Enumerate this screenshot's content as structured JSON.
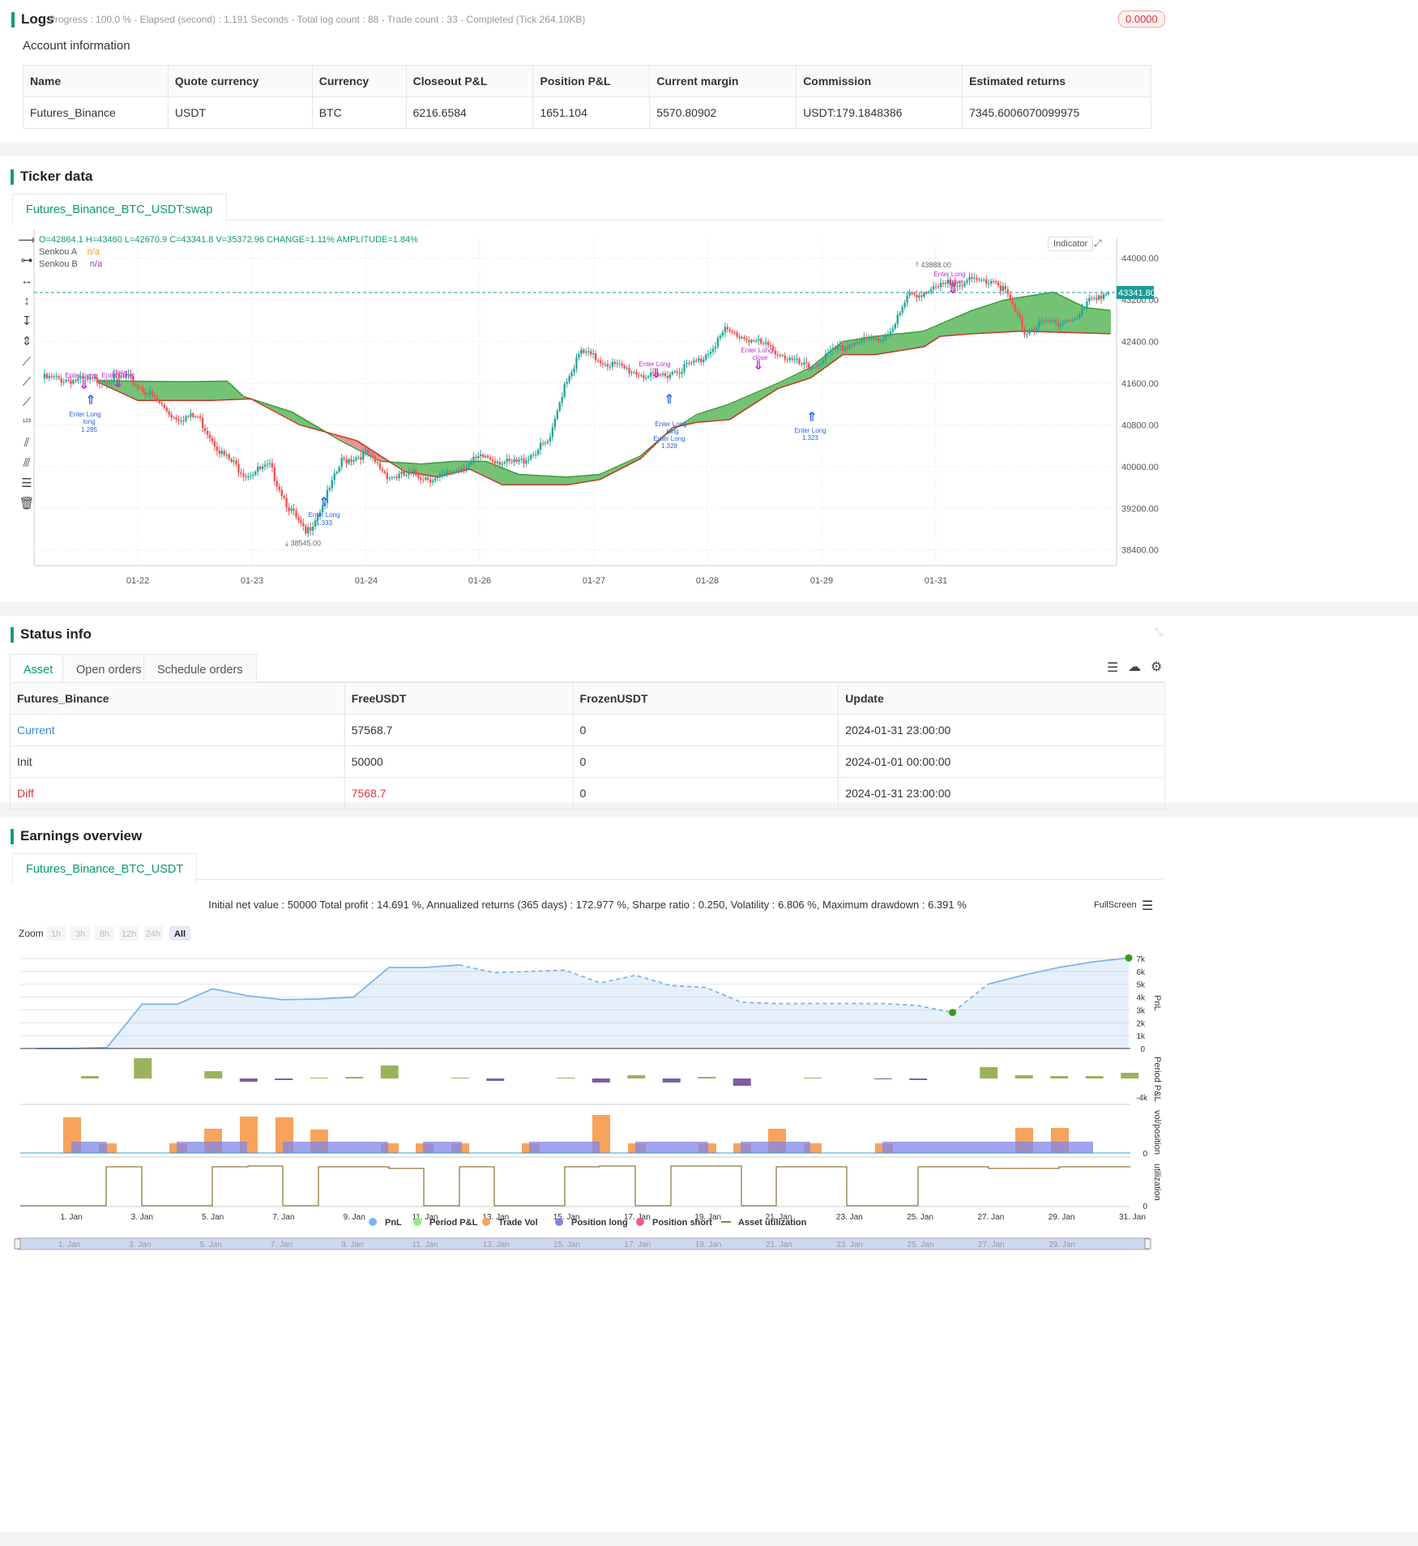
{
  "logs": {
    "title": "Logs",
    "summary": "Progress : 100.0 % - Elapsed (second) : 1.191 Seconds - Total log count : 88 - Trade count : 33 - Completed (Tick 264.10KB)",
    "badge": "0.0000"
  },
  "account": {
    "title": "Account information",
    "headers": [
      "Name",
      "Quote currency",
      "Currency",
      "Closeout P&L",
      "Position P&L",
      "Current margin",
      "Commission",
      "Estimated returns"
    ],
    "row": [
      "Futures_Binance",
      "USDT",
      "BTC",
      "6216.6584",
      "1651.104",
      "5570.80902",
      "USDT:179.1848386",
      "7345.6006070099975"
    ]
  },
  "ticker": {
    "title": "Ticker data",
    "tab": "Futures_Binance_BTC_USDT:swap",
    "ohlc": "O=42864.1 H=43460 L=42670.9 C=43341.8 V=35372.96 CHANGE=1.11% AMPLITUDE=1.84%",
    "legend": [
      {
        "name": "Senkou A",
        "value": "n/a",
        "color": "#f39c12"
      },
      {
        "name": "Senkou B",
        "value": "n/a",
        "color": "#8e44ad"
      }
    ],
    "indicator_btn": "Indicator",
    "price_label": "43341.80",
    "high_label": "43888.00",
    "low_label": "38545.00",
    "y_ticks": [
      "44000.00",
      "43200.00",
      "42400.00",
      "41600.00",
      "40800.00",
      "40000.00",
      "39200.00",
      "38400.00"
    ],
    "x_ticks": [
      "01-22",
      "01-23",
      "01-24",
      "01-26",
      "01-27",
      "01-28",
      "01-29",
      "01-31"
    ],
    "annotations": [
      "Enter Long",
      "Enter Long",
      "close",
      "Enter Long",
      "long",
      "1.285",
      "Enter Long",
      "1.333",
      "Enter Long",
      "Enter Long",
      "long",
      "Enter Long",
      "1.328",
      "Enter Long",
      "close",
      "Enter Long",
      "1.323",
      "Enter Long",
      "close"
    ]
  },
  "status": {
    "title": "Status info",
    "tabs": [
      "Asset",
      "Open orders",
      "Schedule orders"
    ],
    "headers": [
      "Futures_Binance",
      "FreeUSDT",
      "FrozenUSDT",
      "Update"
    ],
    "rows": [
      [
        "Current",
        "57568.7",
        "0",
        "2024-01-31 23:00:00"
      ],
      [
        "Init",
        "50000",
        "0",
        "2024-01-01 00:00:00"
      ],
      [
        "Diff",
        "7568.7",
        "0",
        "2024-01-31 23:00:00"
      ]
    ]
  },
  "earnings": {
    "title": "Earnings overview",
    "tab": "Futures_Binance_BTC_USDT",
    "summary": "Initial net value : 50000 Total profit : 14.691 %, Annualized returns (365 days) : 172.977 %, Sharpe ratio : 0.250, Volatility : 6.806 %, Maximum drawdown : 6.391 %",
    "fullscreen": "FullScreen",
    "zoom_label": "Zoom",
    "zoom": [
      "1h",
      "3h",
      "8h",
      "12h",
      "24h",
      "All"
    ],
    "pnl_ticks": [
      "7k",
      "6k",
      "5k",
      "4k",
      "3k",
      "2k",
      "1k",
      "0"
    ],
    "axis_titles": [
      "PnL",
      "Period P&L",
      "vol/position",
      "utilization"
    ],
    "period_tick": "-4k",
    "vol_tick": "0",
    "util_tick": "0",
    "x_ticks": [
      "1. Jan",
      "3. Jan",
      "5. Jan",
      "7. Jan",
      "9. Jan",
      "11. Jan",
      "13. Jan",
      "15. Jan",
      "17. Jan",
      "19. Jan",
      "21. Jan",
      "23. Jan",
      "25. Jan",
      "27. Jan",
      "29. Jan",
      "31. Jan"
    ],
    "nav_ticks": [
      "1. Jan",
      "3. Jan",
      "5. Jan",
      "7. Jan",
      "9. Jan",
      "11. Jan",
      "13. Jan",
      "15. Jan",
      "17. Jan",
      "19. Jan",
      "21. Jan",
      "23. Jan",
      "25. Jan",
      "27. Jan",
      "29. Jan"
    ],
    "legend": [
      {
        "name": "PnL",
        "color": "#7cb5ec"
      },
      {
        "name": "Period P&L",
        "color": "#90ed7d"
      },
      {
        "name": "Trade Vol",
        "color": "#f7a35c"
      },
      {
        "name": "Position long",
        "color": "#8085e9"
      },
      {
        "name": "Position short",
        "color": "#f15c80"
      },
      {
        "name": "Asset utilization",
        "color": "#8d7b3f"
      }
    ]
  }
}
